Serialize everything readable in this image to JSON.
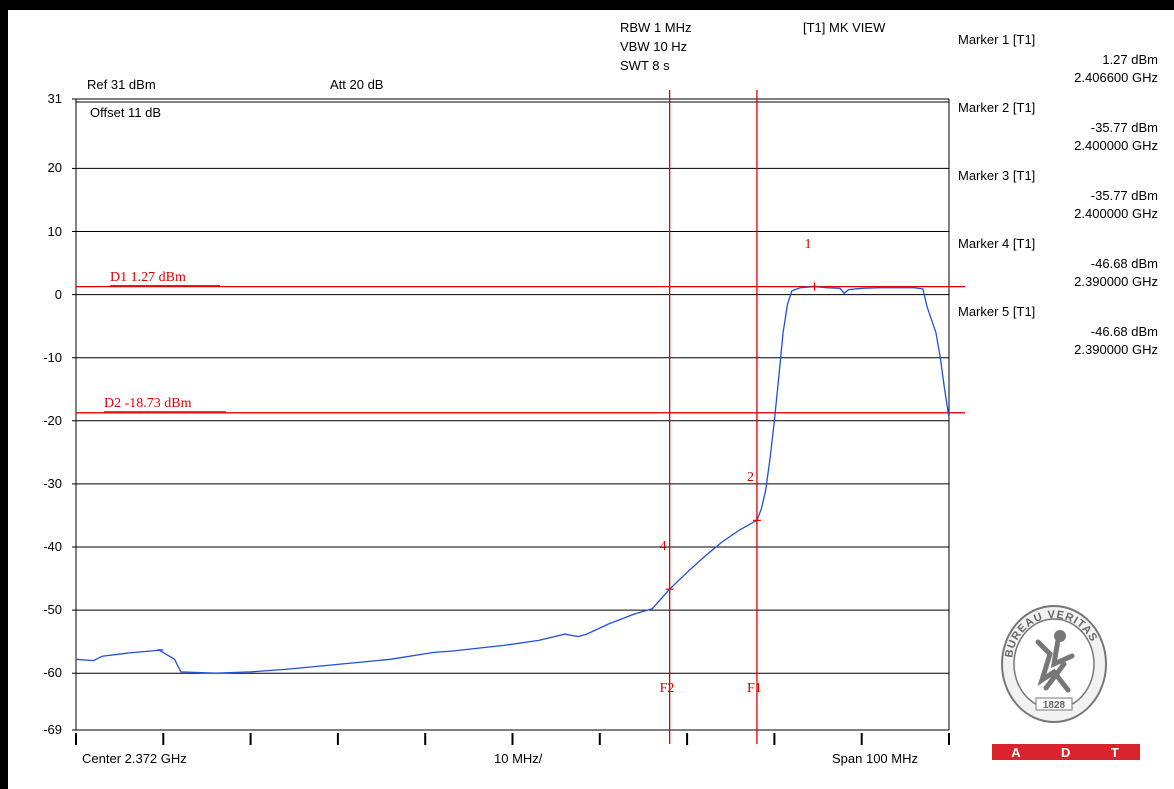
{
  "header": {
    "rbw": "RBW 1 MHz",
    "vbw": "VBW 10 Hz",
    "swt": "SWT 8 s",
    "view": "[T1] MK VIEW",
    "ref": "Ref 31 dBm",
    "att": "Att  20 dB",
    "offset": "Offset 11 dB"
  },
  "footer": {
    "center": "Center 2.372 GHz",
    "div": "10 MHz/",
    "span": "Span 100 MHz"
  },
  "markers": [
    {
      "title": "Marker 1 [T1]",
      "level": "1.27 dBm",
      "freq": "2.406600 GHz"
    },
    {
      "title": "Marker 2 [T1]",
      "level": "-35.77 dBm",
      "freq": "2.400000 GHz"
    },
    {
      "title": "Marker 3 [T1]",
      "level": "-35.77 dBm",
      "freq": "2.400000 GHz"
    },
    {
      "title": "Marker 4 [T1]",
      "level": "-46.68 dBm",
      "freq": "2.390000 GHz"
    },
    {
      "title": "Marker 5 [T1]",
      "level": "-46.68 dBm",
      "freq": "2.390000 GHz"
    }
  ],
  "display_lines": [
    {
      "label": "D1 1.27 dBm",
      "value": 1.27
    },
    {
      "label": "D2 -18.73 dBm",
      "value": -18.73
    }
  ],
  "freq_lines": [
    {
      "label": "F2",
      "freq": 2.39
    },
    {
      "label": "F1",
      "freq": 2.4
    }
  ],
  "marker_points": [
    {
      "label": "1",
      "freq": 2.4066,
      "level": 1.27
    },
    {
      "label": "2",
      "freq": 2.4,
      "level": -35.77
    },
    {
      "label": "4",
      "freq": 2.39,
      "level": -46.68
    }
  ],
  "logo": {
    "text_top": "BUREAU VERITAS",
    "year": "1828",
    "bar": [
      "A",
      "D",
      "T"
    ]
  },
  "colors": {
    "trace": "#2050d8",
    "lines": "#e00000",
    "grid": "#000000"
  },
  "chart_data": {
    "type": "line",
    "title": "",
    "xlabel": "",
    "ylabel": "",
    "xlim": [
      2.322,
      2.422
    ],
    "ylim": [
      -69,
      31
    ],
    "y_ticks": [
      31,
      20,
      10,
      0,
      -10,
      -20,
      -30,
      -40,
      -50,
      -60,
      -69
    ],
    "series": [
      {
        "x": [
          2.322,
          2.324,
          2.325,
          2.328,
          2.332,
          2.3315,
          2.3333,
          2.334,
          2.338,
          2.342,
          2.346,
          2.352,
          2.358,
          2.363,
          2.365,
          2.371,
          2.375,
          2.378,
          2.3795,
          2.3805,
          2.383,
          2.386,
          2.388,
          2.39,
          2.392,
          2.394,
          2.396,
          2.398,
          2.4,
          2.4005,
          2.401,
          2.4015,
          2.402,
          2.4025,
          2.403,
          2.4035,
          2.404,
          2.405,
          2.4066,
          2.408,
          2.4095,
          2.41,
          2.4105,
          2.412,
          2.414,
          2.416,
          2.418,
          2.419,
          2.4195,
          2.4205,
          2.421,
          2.4215,
          2.422
        ],
        "y": [
          -57.8,
          -58.0,
          -57.3,
          -56.8,
          -56.3,
          -56.3,
          -57.8,
          -59.8,
          -60.0,
          -59.8,
          -59.4,
          -58.6,
          -57.8,
          -56.7,
          -56.5,
          -55.6,
          -54.8,
          -53.8,
          -54.2,
          -53.8,
          -52.2,
          -50.6,
          -49.8,
          -46.68,
          -44.0,
          -41.5,
          -39.2,
          -37.3,
          -35.77,
          -34.0,
          -31.0,
          -26.0,
          -20.0,
          -13.0,
          -6.0,
          -1.5,
          0.6,
          1.1,
          1.27,
          1.1,
          1.0,
          0.2,
          0.8,
          1.0,
          1.1,
          1.1,
          1.1,
          0.9,
          -2.0,
          -6.0,
          -10.0,
          -15.0,
          -19.5
        ]
      }
    ]
  }
}
